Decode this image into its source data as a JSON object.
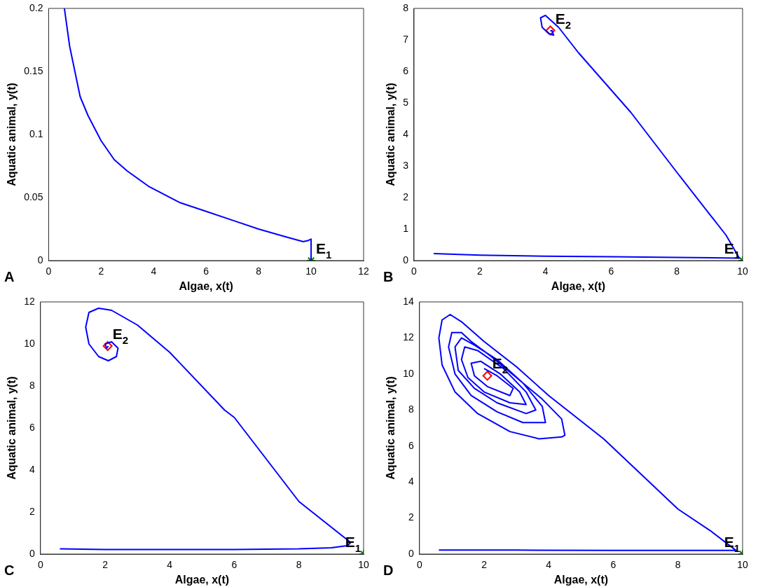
{
  "chart_data": [
    {
      "type": "line",
      "xlabel": "Algae, x(t)",
      "ylabel": "Aquatic animal, y(t)",
      "xlim": [
        0,
        12
      ],
      "ylim": [
        0,
        0.2
      ],
      "xticks": [
        0,
        2,
        4,
        6,
        8,
        10,
        12
      ],
      "yticks": [
        0,
        0.05,
        0.1,
        0.15,
        0.2
      ],
      "grid": false,
      "legend": false,
      "series": [
        {
          "color": "#0000ff",
          "marker": "none",
          "x": [
            0.6,
            0.8,
            1.0,
            1.2,
            1.5,
            2.0,
            2.5,
            3.0,
            3.8,
            5.0,
            6.0,
            7.0,
            8.0,
            9.0,
            9.7,
            9.9,
            10.0,
            10.0
          ],
          "values": [
            0.2,
            0.17,
            0.15,
            0.13,
            0.115,
            0.095,
            0.08,
            0.071,
            0.059,
            0.046,
            0.039,
            0.032,
            0.025,
            0.019,
            0.015,
            0.016,
            0.017,
            0
          ]
        },
        {
          "type": "scatter",
          "color": "#008000",
          "marker": "cross",
          "x": [
            10
          ],
          "values": [
            0
          ]
        }
      ],
      "annotations": [
        {
          "text": "E$_{1}$",
          "x": 10,
          "y": 0
        },
        "A"
      ]
    },
    {
      "type": "line",
      "xlabel": "Algae, x(t)",
      "ylabel": "Aquatic animal, y(t)",
      "xlim": [
        0,
        10
      ],
      "ylim": [
        0,
        8
      ],
      "xticks": [
        0,
        2,
        4,
        6,
        8,
        10
      ],
      "yticks": [
        0,
        1,
        2,
        3,
        4,
        5,
        6,
        7,
        8
      ],
      "grid": false,
      "legend": false,
      "series": [
        {
          "color": "#0000ff",
          "marker": "none",
          "x": [
            0.6,
            2,
            4,
            6,
            8,
            9.9,
            9.5,
            8,
            6.6,
            5,
            4.4,
            4.0,
            3.85,
            3.9,
            4.1,
            4.25,
            4.2,
            4.15
          ],
          "values": [
            0.22,
            0.17,
            0.14,
            0.12,
            0.1,
            0.08,
            0.8,
            2.8,
            4.7,
            6.6,
            7.4,
            7.78,
            7.7,
            7.4,
            7.2,
            7.15,
            7.3,
            7.28
          ]
        },
        {
          "type": "scatter",
          "color": "#ff0000",
          "marker": "diamond",
          "x": [
            4.15
          ],
          "values": [
            7.3
          ]
        },
        {
          "type": "scatter",
          "color": "#008000",
          "marker": "cross",
          "x": [
            10
          ],
          "values": [
            0
          ]
        }
      ],
      "annotations": [
        {
          "text": "E$_{1}$",
          "x": 10,
          "y": 0
        },
        {
          "text": "E$_{2}$",
          "x": 4.15,
          "y": 7.3
        },
        "B"
      ]
    },
    {
      "type": "line",
      "xlabel": "Algae, x(t)",
      "ylabel": "Aquatic animal, y(t)",
      "xlim": [
        0,
        10
      ],
      "ylim": [
        0,
        12
      ],
      "xticks": [
        0,
        2,
        4,
        6,
        8,
        10
      ],
      "yticks": [
        0,
        2,
        4,
        6,
        8,
        10,
        12
      ],
      "grid": false,
      "legend": false,
      "series": [
        {
          "color": "#0000ff",
          "marker": "none",
          "x": [
            0.6,
            2,
            4,
            6,
            8,
            9,
            9.5,
            9.6,
            8,
            6,
            5.7,
            4,
            3,
            2.2,
            1.8,
            1.5,
            1.4,
            1.5,
            1.8,
            2.1,
            2.35,
            2.4,
            2.2,
            2.0,
            2.05,
            2.1
          ],
          "values": [
            0.25,
            0.22,
            0.22,
            0.22,
            0.25,
            0.3,
            0.4,
            0.55,
            2.5,
            6.5,
            6.85,
            9.6,
            10.9,
            11.6,
            11.7,
            11.5,
            10.8,
            10.0,
            9.4,
            9.2,
            9.4,
            9.8,
            10.1,
            10.0,
            9.8,
            9.9
          ]
        },
        {
          "type": "scatter",
          "color": "#ff0000",
          "marker": "diamond",
          "x": [
            2.08
          ],
          "values": [
            9.9
          ]
        },
        {
          "type": "scatter",
          "color": "#008000",
          "marker": "cross",
          "x": [
            10
          ],
          "values": [
            0
          ]
        }
      ],
      "annotations": [
        {
          "text": "E$_{1}$",
          "x": 10,
          "y": 0
        },
        {
          "text": "E$_{2}$",
          "x": 2.08,
          "y": 9.9
        },
        "C"
      ]
    },
    {
      "type": "line",
      "xlabel": "Algae, x(t)",
      "ylabel": "Aquatic animal, y(t)",
      "xlim": [
        0,
        10
      ],
      "ylim": [
        0,
        14
      ],
      "xticks": [
        0,
        2,
        4,
        6,
        8,
        10
      ],
      "yticks": [
        0,
        2,
        4,
        6,
        8,
        10,
        12,
        14
      ],
      "grid": false,
      "legend": false,
      "series": [
        {
          "color": "#0000ff",
          "marker": "none",
          "x": [
            0.6,
            3,
            6,
            8,
            9.8,
            9,
            8,
            5.7,
            4,
            3,
            2,
            1.3,
            0.95,
            0.7,
            0.6,
            0.7,
            1.1,
            1.8,
            2.8,
            3.7,
            4.4,
            4.5,
            4.4,
            3.8,
            3,
            2.2,
            1.6,
            1.3,
            1.0,
            0.9,
            1.1,
            1.6,
            2.4,
            3.2,
            3.9,
            3.8,
            3.2,
            2.4,
            1.7,
            1.3,
            1.1,
            1.2,
            1.7,
            2.4,
            3.3,
            3.6,
            3.3,
            2.6,
            1.8,
            1.4,
            1.3,
            1.5,
            2,
            2.8,
            3.3,
            3.1,
            2.5,
            1.9,
            1.6,
            1.7,
            2.1,
            2.8,
            2.9,
            2.4,
            2.0
          ],
          "values": [
            0.22,
            0.22,
            0.2,
            0.2,
            0.2,
            1.3,
            2.5,
            6.4,
            8.8,
            10.4,
            11.8,
            12.9,
            13.3,
            13,
            12,
            10.5,
            9,
            7.8,
            6.8,
            6.4,
            6.5,
            6.6,
            7.5,
            8.6,
            9.8,
            11,
            11.8,
            12.3,
            12.3,
            11.5,
            10,
            8.8,
            7.9,
            7.3,
            7.3,
            8.2,
            9.5,
            10.8,
            11.6,
            12,
            11.5,
            10.2,
            9.2,
            8.4,
            7.8,
            8,
            9,
            10.3,
            11.3,
            11.5,
            10.8,
            9.8,
            9,
            8.4,
            8.3,
            9,
            10,
            10.7,
            10.6,
            9.9,
            9.3,
            8.8,
            9.2,
            9.9,
            10.3
          ]
        },
        {
          "type": "scatter",
          "color": "#ff0000",
          "marker": "diamond",
          "x": [
            2.1
          ],
          "values": [
            9.9
          ]
        },
        {
          "type": "scatter",
          "color": "#008000",
          "marker": "cross",
          "x": [
            10
          ],
          "values": [
            0
          ]
        }
      ],
      "annotations": [
        {
          "text": "E$_{1}$",
          "x": 10,
          "y": 0
        },
        {
          "text": "E$_{2}$",
          "x": 2.1,
          "y": 9.9
        },
        "D"
      ]
    }
  ]
}
